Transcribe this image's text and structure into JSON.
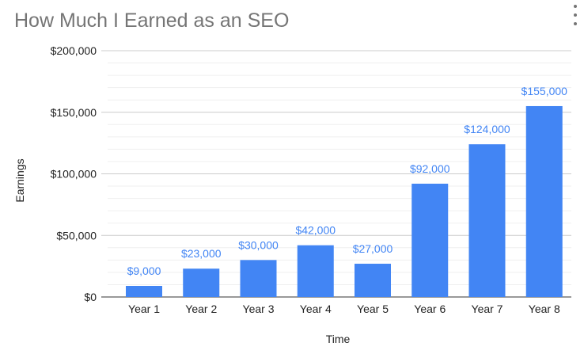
{
  "chart_data": {
    "type": "bar",
    "title": "How Much I Earned as an SEO",
    "xlabel": "Time",
    "ylabel": "Earnings",
    "categories": [
      "Year 1",
      "Year 2",
      "Year 3",
      "Year 4",
      "Year 5",
      "Year 6",
      "Year 7",
      "Year 8"
    ],
    "values": [
      9000,
      23000,
      30000,
      42000,
      27000,
      92000,
      124000,
      155000
    ],
    "value_labels": [
      "$9,000",
      "$23,000",
      "$30,000",
      "$42,000",
      "$27,000",
      "$92,000",
      "$124,000",
      "$155,000"
    ],
    "ylim": [
      0,
      200000
    ],
    "y_ticks": [
      0,
      50000,
      100000,
      150000,
      200000
    ],
    "y_tick_labels": [
      "$0",
      "$50,000",
      "$100,000",
      "$150,000",
      "$200,000"
    ],
    "grid": true,
    "bar_color": "#4285f4",
    "label_color": "#4285f4"
  }
}
